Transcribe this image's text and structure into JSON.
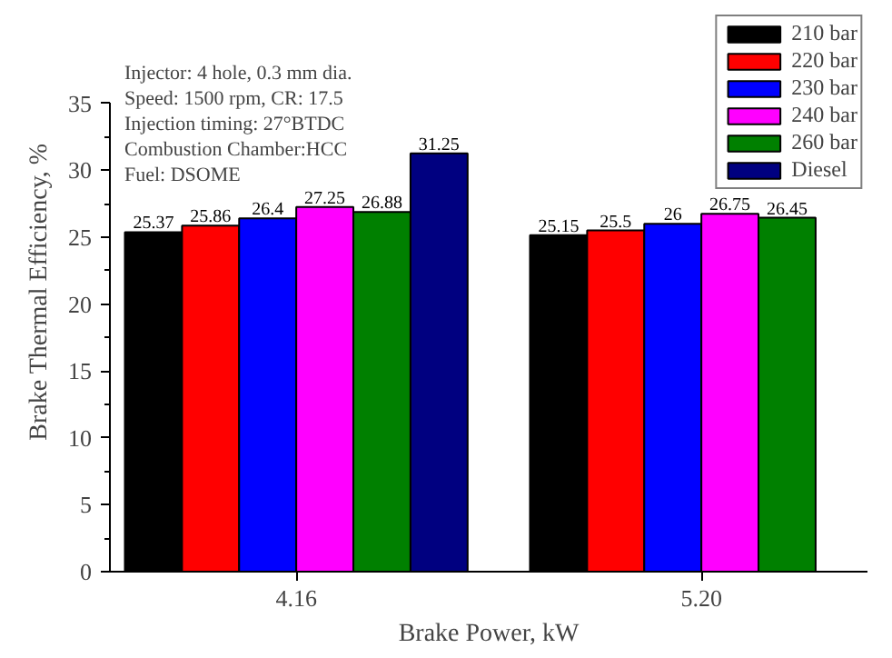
{
  "chart_data": {
    "type": "bar",
    "xlabel": "Brake Power, kW",
    "ylabel": "Brake Thermal Efficiency, %",
    "categories": [
      "4.16",
      "5.20"
    ],
    "series": [
      {
        "name": "210 bar",
        "color": "#000000",
        "values": [
          25.37,
          25.15
        ]
      },
      {
        "name": "220 bar",
        "color": "#ff0000",
        "values": [
          25.86,
          25.5
        ]
      },
      {
        "name": "230 bar",
        "color": "#0000ff",
        "values": [
          26.4,
          26
        ]
      },
      {
        "name": "240 bar",
        "color": "#ff00ff",
        "values": [
          27.25,
          26.75
        ]
      },
      {
        "name": "260 bar",
        "color": "#008000",
        "values": [
          26.88,
          26.45
        ]
      },
      {
        "name": "Diesel",
        "color": "#000080",
        "values": [
          31.25,
          null
        ]
      }
    ],
    "ylim": [
      0,
      35
    ],
    "yticks": [
      0,
      5,
      10,
      15,
      20,
      25,
      30,
      35
    ],
    "data_labels": true,
    "legend": "top right",
    "grid": false,
    "annotations": [
      "Injector: 4 hole, 0.3 mm dia.",
      "Speed: 1500 rpm, CR: 17.5",
      "Injection timing: 27°BTDC",
      "Combustion Chamber:HCC",
      "Fuel: DSOME"
    ]
  }
}
